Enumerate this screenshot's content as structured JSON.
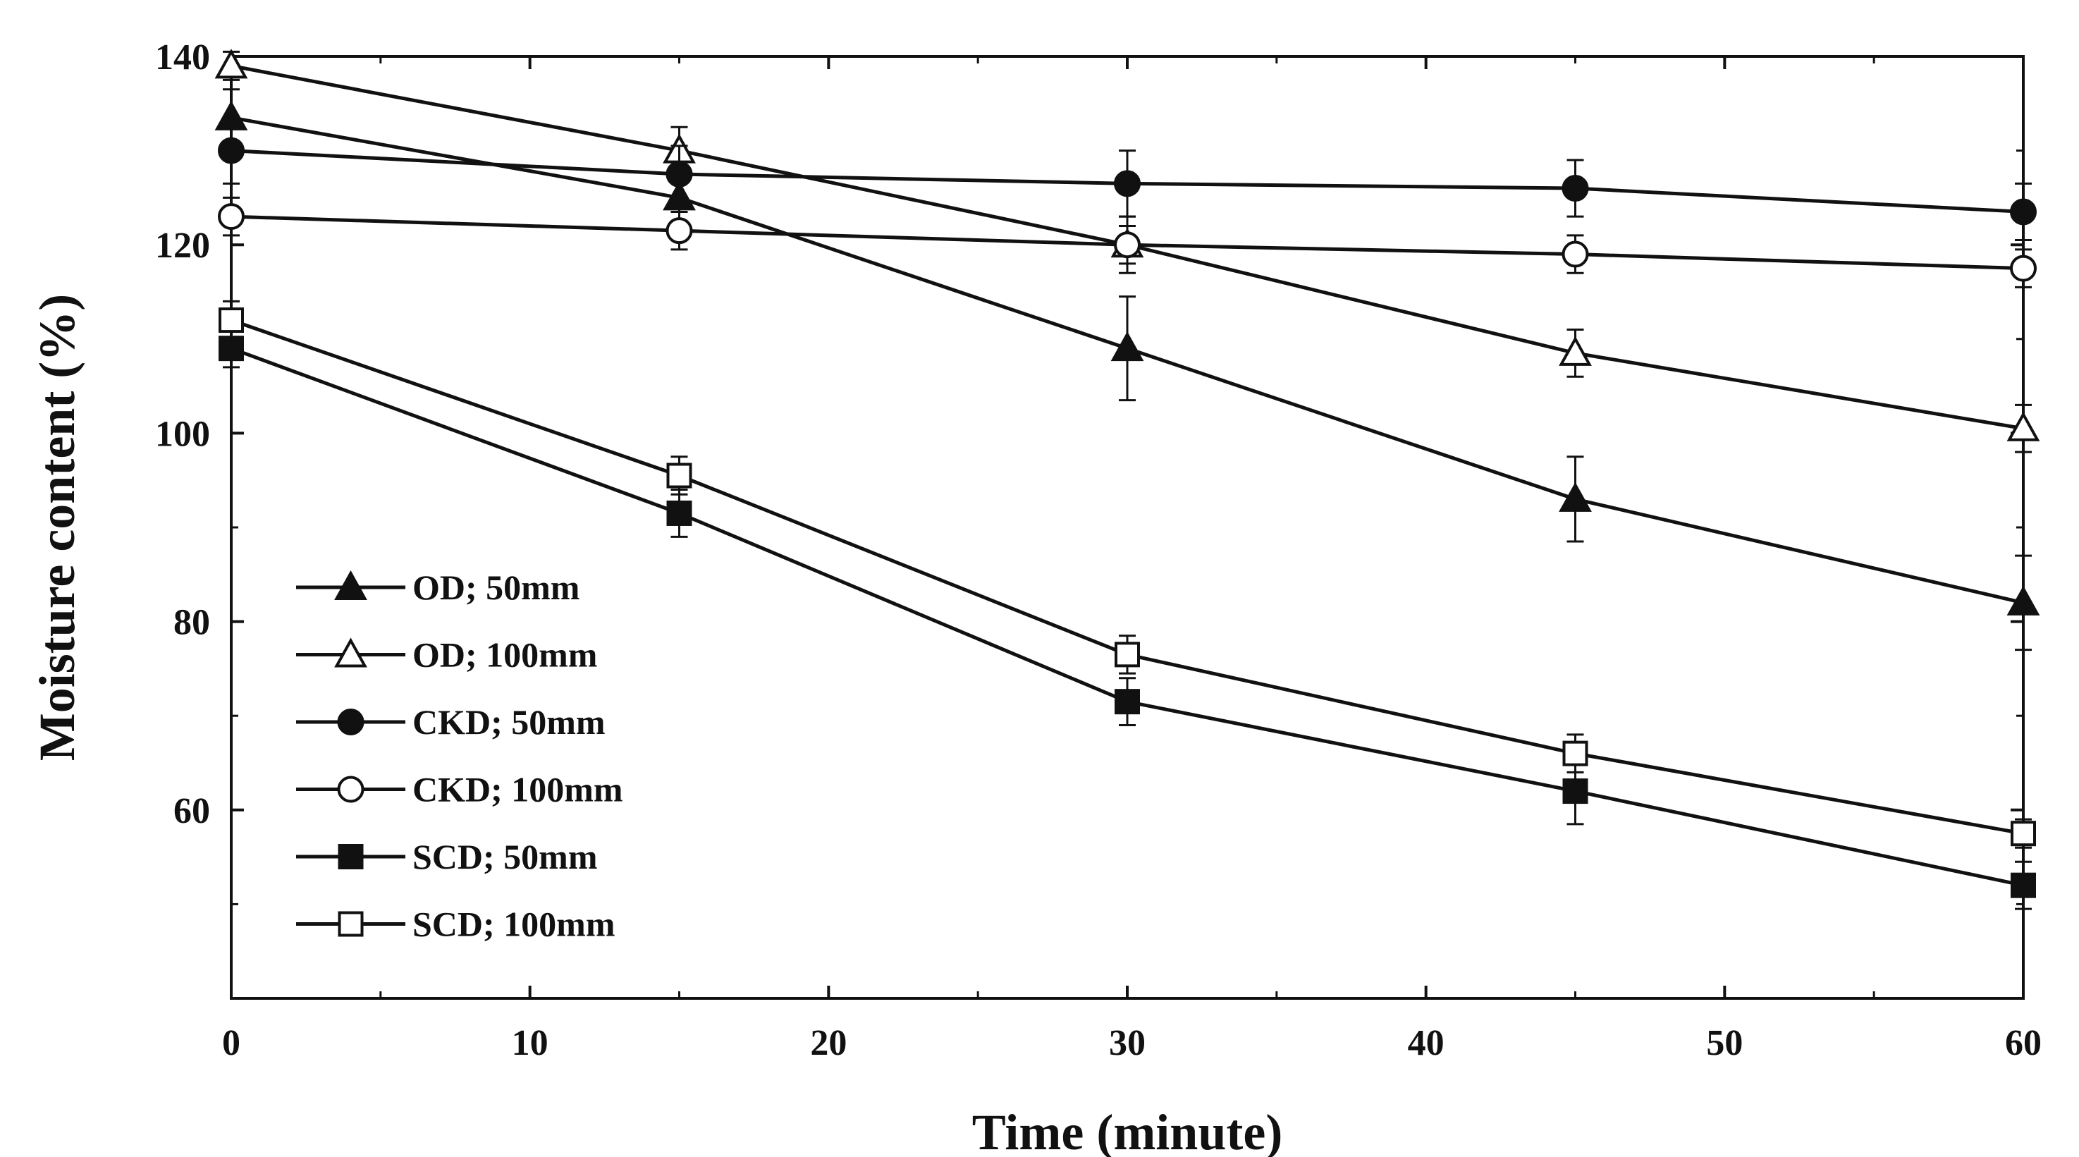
{
  "chart_data": {
    "type": "line",
    "title": "",
    "xlabel": "Time (minute)",
    "ylabel": "Moisture content (%)",
    "xlim": [
      0,
      60
    ],
    "ylim": [
      40,
      140
    ],
    "x_ticks": [
      0,
      10,
      20,
      30,
      40,
      50,
      60
    ],
    "y_ticks": [
      60,
      80,
      100,
      120,
      140
    ],
    "grid": false,
    "legend_position": "left-bottom",
    "x": [
      0,
      15,
      30,
      45,
      60
    ],
    "series": [
      {
        "name": "OD; 50mm",
        "marker": "triangle",
        "filled": true,
        "values": [
          133.5,
          125,
          109,
          93,
          82
        ],
        "errors": [
          3,
          2.5,
          5.5,
          4.5,
          5
        ]
      },
      {
        "name": "OD; 100mm",
        "marker": "triangle",
        "filled": false,
        "values": [
          139,
          130,
          120,
          108.5,
          100.5
        ],
        "errors": [
          1.5,
          2.5,
          3,
          2.5,
          2.5
        ]
      },
      {
        "name": "CKD; 50mm",
        "marker": "circle",
        "filled": true,
        "values": [
          130,
          127.5,
          126.5,
          126,
          123.5
        ],
        "errors": [
          3.5,
          3,
          3.5,
          3,
          3
        ]
      },
      {
        "name": "CKD; 100mm",
        "marker": "circle",
        "filled": false,
        "values": [
          123,
          121.5,
          120,
          119,
          117.5
        ],
        "errors": [
          2,
          2,
          2,
          2,
          2
        ]
      },
      {
        "name": "SCD; 50mm",
        "marker": "square",
        "filled": true,
        "values": [
          109,
          91.5,
          71.5,
          62,
          52
        ],
        "errors": [
          2,
          2.5,
          2.5,
          3.5,
          2.5
        ]
      },
      {
        "name": "SCD; 100mm",
        "marker": "square",
        "filled": false,
        "values": [
          112,
          95.5,
          76.5,
          66,
          57.5
        ],
        "errors": [
          2,
          2,
          2,
          2,
          1.5
        ]
      }
    ]
  }
}
